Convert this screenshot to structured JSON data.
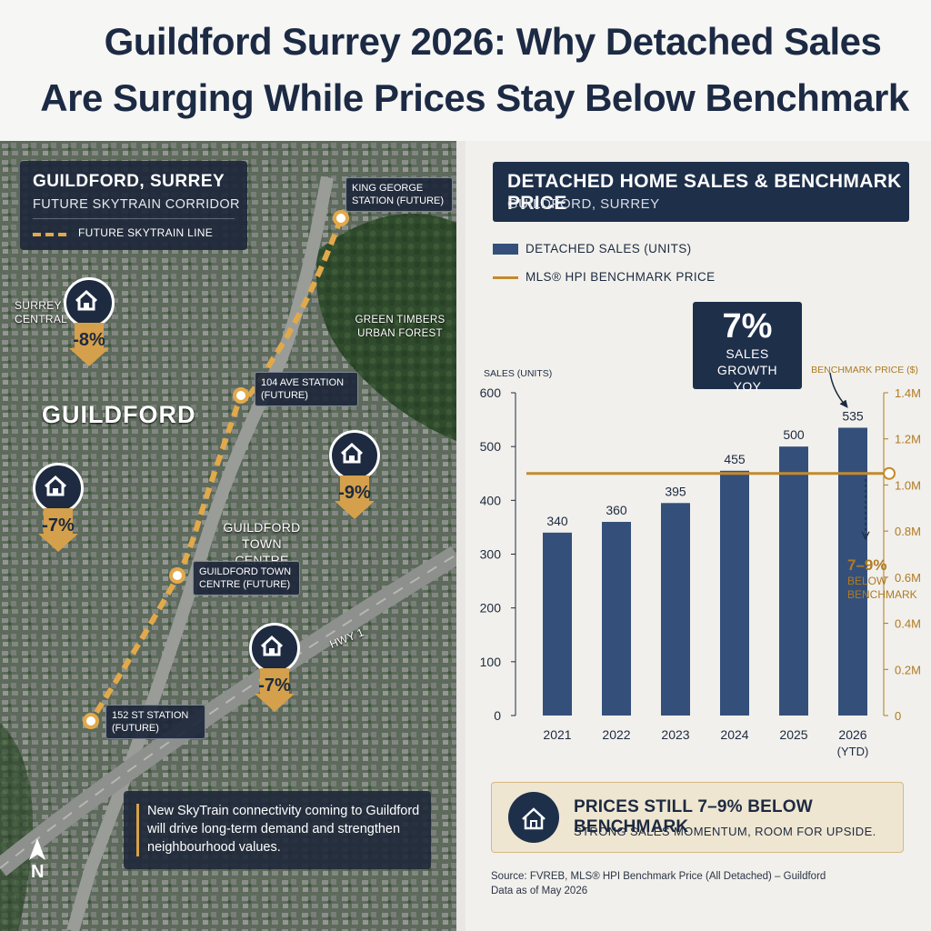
{
  "header": {
    "title_line1": "Guildford Surrey 2026: Why Detached Sales",
    "title_line2": "Are Surging While Prices Stay Below Benchmark"
  },
  "map": {
    "box_title": "GUILDFORD, SURREY",
    "box_subtitle": "FUTURE SKYTRAIN CORRIDOR",
    "legend_label": "FUTURE SKYTRAIN LINE",
    "areas": {
      "surrey_central": "SURREY CENTRAL",
      "guildford": "GUILDFORD",
      "green_timbers": "GREEN TIMBERS URBAN FOREST",
      "town_centre": "GUILDFORD TOWN CENTRE",
      "hwy": "HWY 1"
    },
    "stations": {
      "king_george": "KING GEORGE STATION (FUTURE)",
      "ave104": "104 AVE STATION (FUTURE)",
      "town_centre": "GUILDFORD TOWN CENTRE (FUTURE)",
      "st152": "152 ST STATION (FUTURE)"
    },
    "pins": [
      {
        "pct": "-8%"
      },
      {
        "pct": "-9%"
      },
      {
        "pct": "-7%"
      },
      {
        "pct": "-7%"
      }
    ],
    "callout": "New SkyTrain connectivity coming to Guildford will drive long-term demand and strengthen neighbourhood values.",
    "compass": "N"
  },
  "chart_panel": {
    "title": "DETACHED HOME SALES & BENCHMARK PRICE",
    "subtitle": "GUILDFORD, SURREY",
    "legend_sales": "DETACHED SALES (UNITS)",
    "legend_price": "MLS® HPI BENCHMARK PRICE",
    "growth_value": "7%",
    "growth_label": "SALES GROWTH YOY",
    "below_pct": "7–9%",
    "below_label1": "BELOW",
    "below_label2": "BENCHMARK",
    "bottom_title": "PRICES STILL 7–9% BELOW BENCHMARK",
    "bottom_sub": "STRONG SALES MOMENTUM, ROOM FOR UPSIDE.",
    "source_line1": "Source: FVREB, MLS® HPI Benchmark Price (All Detached) – Guildford",
    "source_line2": "Data as of May 2026"
  },
  "colors": {
    "navy": "#1e2f4a",
    "bar": "#34507a",
    "gold": "#c48a2c"
  },
  "chart_data": {
    "type": "bar",
    "categories": [
      "2021",
      "2022",
      "2023",
      "2024",
      "2025",
      "2026"
    ],
    "category_sublabels": [
      "",
      "",
      "",
      "",
      "",
      "(YTD)"
    ],
    "series": [
      {
        "name": "DETACHED SALES (UNITS)",
        "values": [
          340,
          360,
          395,
          455,
          500,
          535
        ]
      }
    ],
    "line": {
      "name": "MLS® HPI BENCHMARK PRICE",
      "value": 1050000
    },
    "ylabel": "SALES (UNITS)",
    "ylim": [
      0,
      600
    ],
    "yticks": [
      "0",
      "100",
      "200",
      "300",
      "400",
      "500",
      "600"
    ],
    "y2label": "BENCHMARK PRICE ($)",
    "y2lim": [
      0,
      1400000
    ],
    "y2ticks": [
      "0",
      "0.2M",
      "0.4M",
      "0.6M",
      "0.8M",
      "1.0M",
      "1.2M",
      "1.4M"
    ],
    "grid": false,
    "legend": "top-left"
  }
}
